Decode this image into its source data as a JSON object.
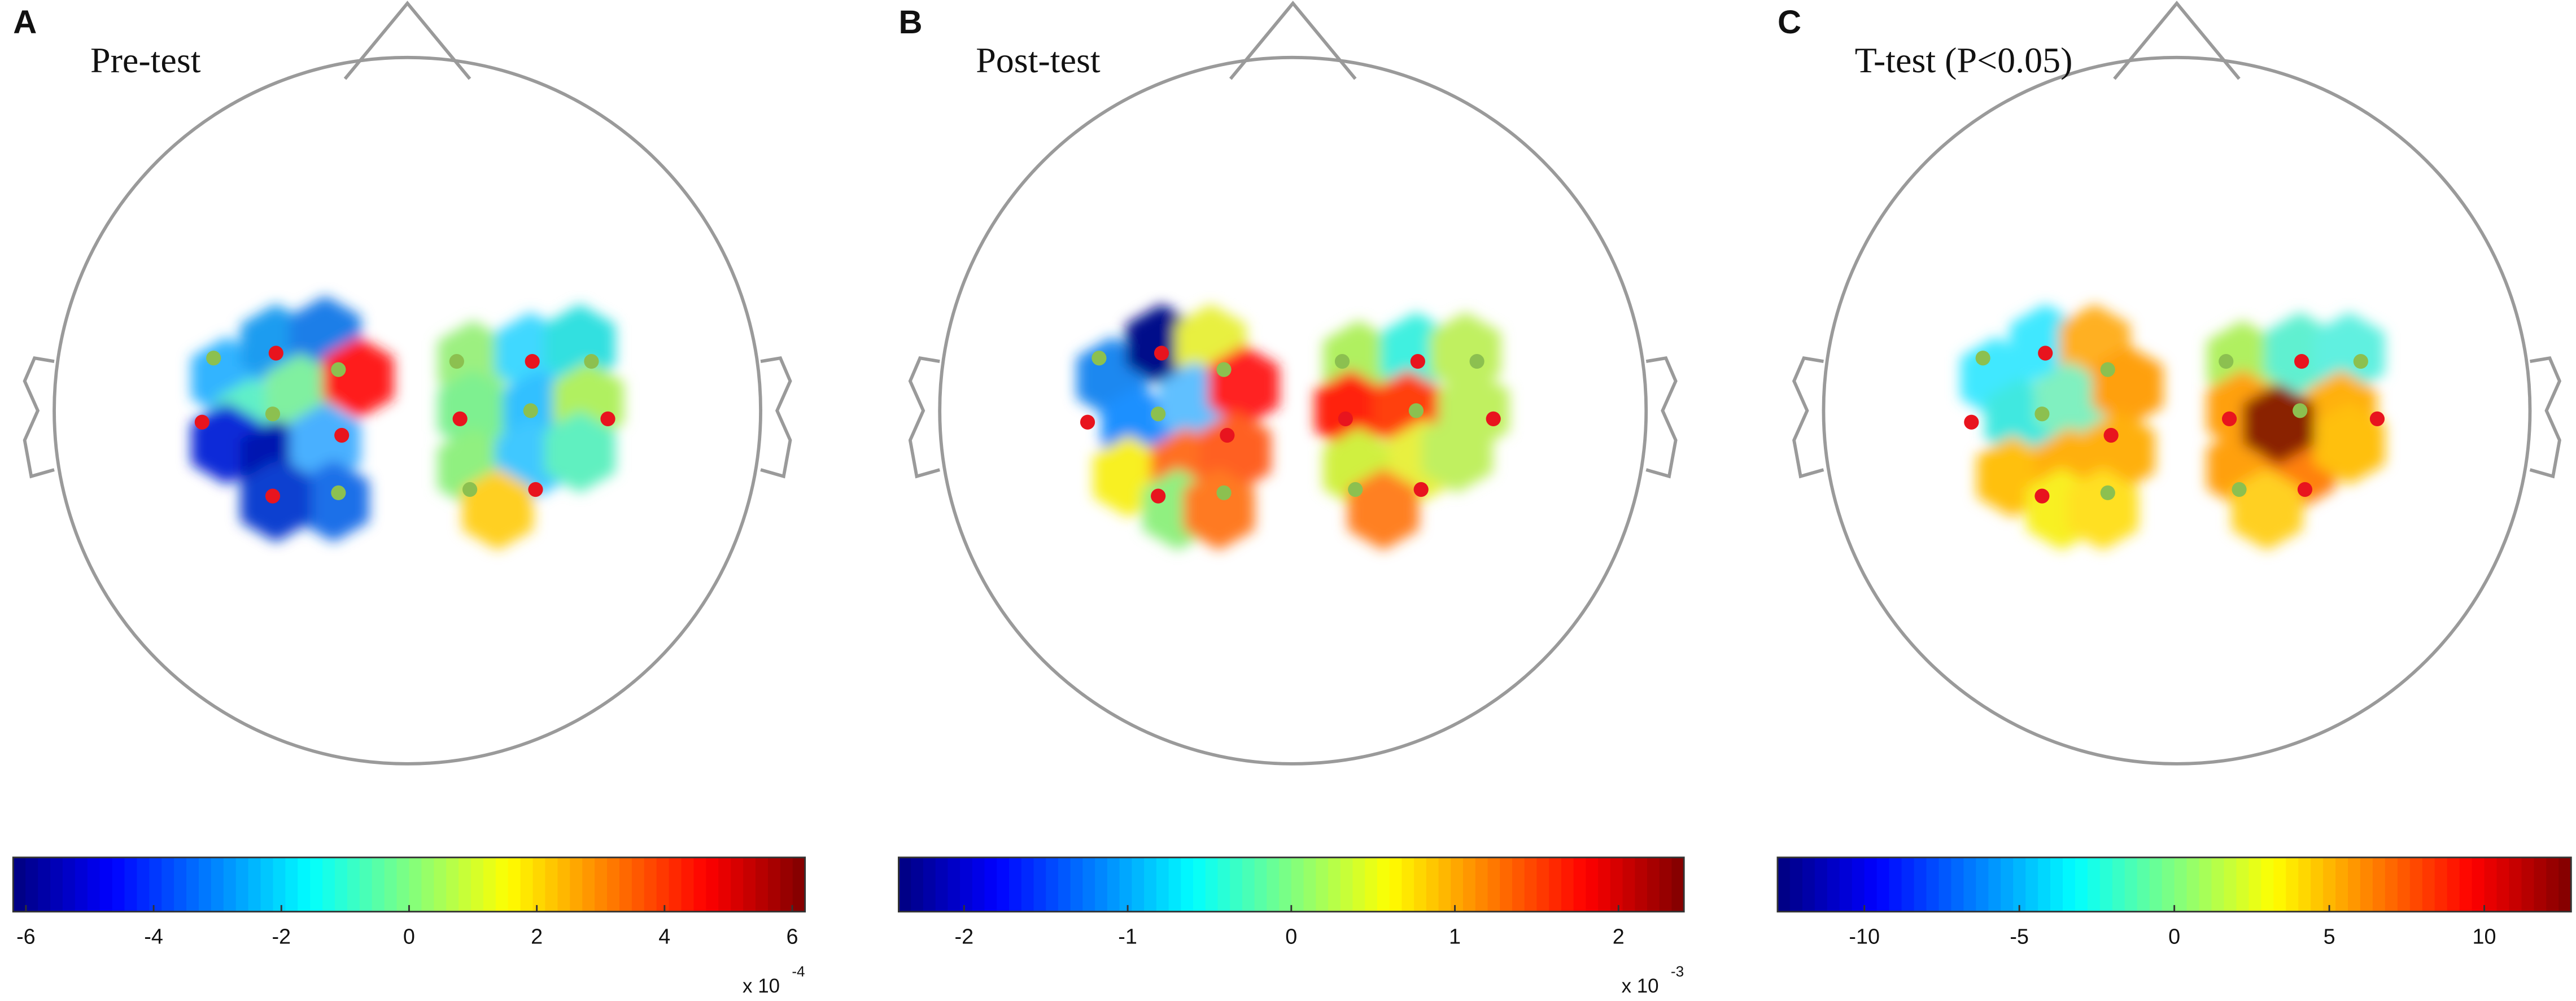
{
  "panels": [
    {
      "label": "A",
      "title": "Pre-test",
      "colorbar": {
        "lim": [
          -6.2,
          6.2
        ],
        "ticks": [
          -6,
          -4,
          -2,
          0,
          2,
          4,
          6
        ],
        "scale": "x 10",
        "exponent": "-4"
      }
    },
    {
      "label": "B",
      "title": "Post-test",
      "colorbar": {
        "lim": [
          -2.4,
          2.4
        ],
        "ticks": [
          -2,
          -1,
          0,
          1,
          2
        ],
        "scale": "x 10",
        "exponent": "-3"
      }
    },
    {
      "label": "C",
      "title": "T-test (P<0.05)",
      "colorbar": {
        "lim": [
          -12.8,
          12.8
        ],
        "ticks": [
          -10,
          -5,
          0,
          5,
          10
        ]
      }
    }
  ]
}
